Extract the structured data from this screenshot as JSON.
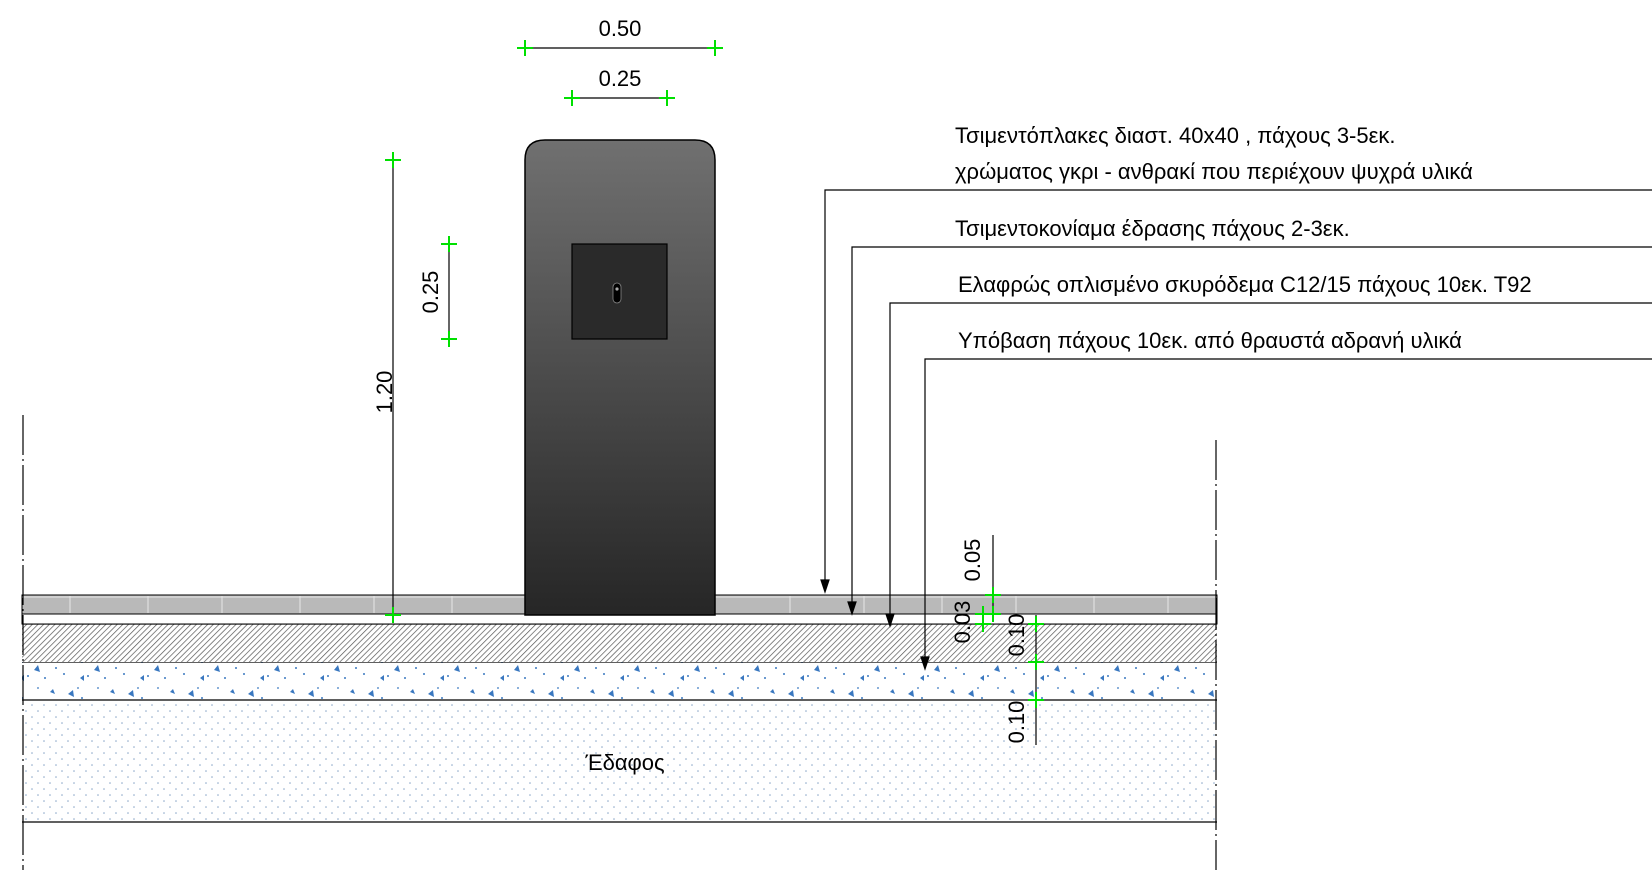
{
  "dimensions": {
    "width_top": "0.50",
    "width_inner": "0.25",
    "height_total": "1.20",
    "socket_size": "0.25",
    "tile_thickness": "0.05",
    "mortar_thickness": "0.03",
    "concrete_thickness": "0.10",
    "subbase_thickness": "0.10"
  },
  "callouts": {
    "tiles_line1": "Τσιμεντόπλακες διαστ. 40x40 , πάχους 3-5εκ.",
    "tiles_line2": "χρώματος γκρι - ανθρακί που περιέχουν ψυχρά υλικά",
    "mortar": "Τσιμεντοκονίαμα έδρασης πάχους 2-3εκ.",
    "concrete": "Ελαφρώς οπλισμένο σκυρόδεμα C12/15 πάχους 10εκ. Τ92",
    "subbase": "Υπόβαση πάχους 10εκ. από θραυστά αδρανή υλικά"
  },
  "labels": {
    "soil": "Έδαφος"
  },
  "colors": {
    "post_dark": "#2a2a2a",
    "post_light": "#6b6b6b",
    "tile": "#b9b9b9",
    "dim_marker": "#00e000",
    "aggregate": "#3a78c0"
  }
}
